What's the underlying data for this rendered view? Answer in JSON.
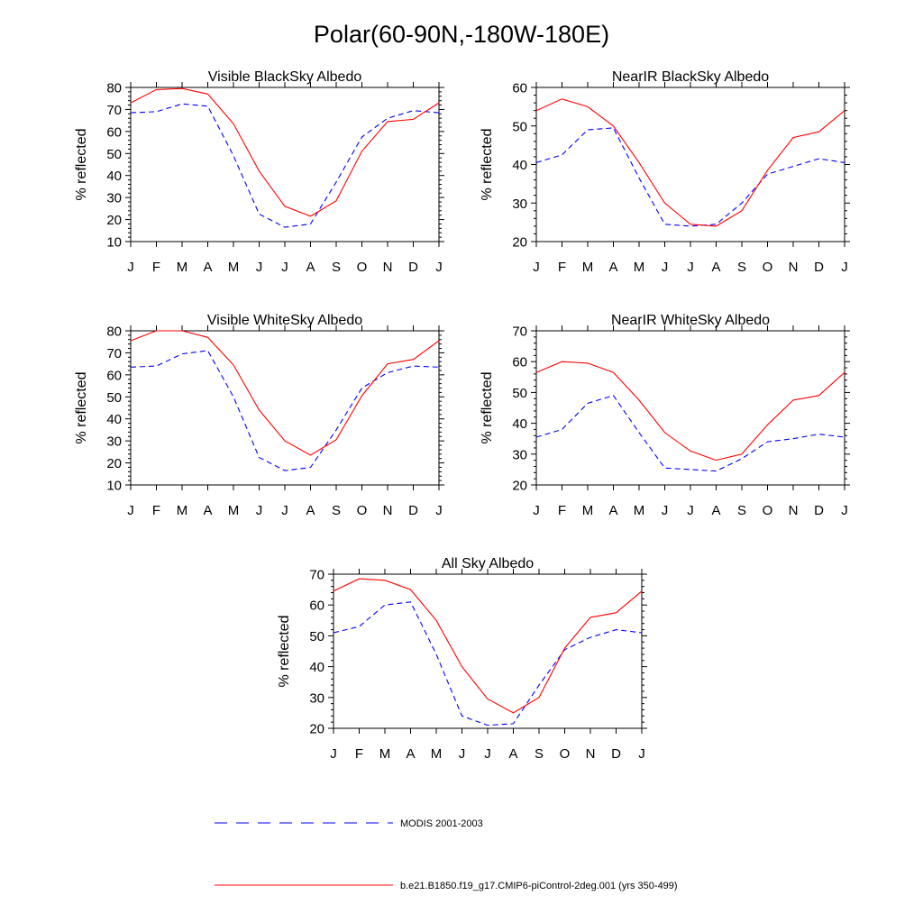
{
  "figure": {
    "title": "Polar(60-90N,-180W-180E)"
  },
  "legend": {
    "items": [
      {
        "name": "MODIS 2001-2003",
        "color": "#0000ff",
        "style": "dashed"
      },
      {
        "name": "b.e21.B1850.f19_g17.CMIP6-piControl-2deg.001 (yrs 350-499)",
        "color": "#ff0000",
        "style": "solid"
      }
    ]
  },
  "chart_data": [
    {
      "type": "line",
      "title": "Visible BlackSky Albedo",
      "xlabel": "",
      "ylabel": "% reflected",
      "categories": [
        "J",
        "F",
        "M",
        "A",
        "M",
        "J",
        "J",
        "A",
        "S",
        "O",
        "N",
        "D",
        "J"
      ],
      "ylim": [
        10,
        80
      ],
      "yticks": [
        10,
        20,
        30,
        40,
        50,
        60,
        70,
        80
      ],
      "series": [
        {
          "name": "MODIS 2001-2003",
          "color": "#0000ff",
          "style": "dashed",
          "values": [
            68.5,
            69,
            72.5,
            71.5,
            49,
            22.5,
            16.5,
            18,
            37,
            57.5,
            66,
            69.5,
            68.5
          ]
        },
        {
          "name": "b.e21.B1850.f19_g17.CMIP6-piControl-2deg.001 (yrs 350-499)",
          "color": "#ff0000",
          "style": "solid",
          "values": [
            73,
            79,
            79.5,
            77,
            63.5,
            42,
            26,
            21.5,
            28.5,
            51,
            64.5,
            65.5,
            73
          ]
        }
      ]
    },
    {
      "type": "line",
      "title": "NearIR BlackSky Albedo",
      "xlabel": "",
      "ylabel": "% reflected",
      "categories": [
        "J",
        "F",
        "M",
        "A",
        "M",
        "J",
        "J",
        "A",
        "S",
        "O",
        "N",
        "D",
        "J"
      ],
      "ylim": [
        20,
        60
      ],
      "yticks": [
        20,
        30,
        40,
        50,
        60
      ],
      "series": [
        {
          "name": "MODIS 2001-2003",
          "color": "#0000ff",
          "style": "dashed",
          "values": [
            40.5,
            42.5,
            49,
            49.5,
            36.5,
            24.5,
            24,
            24.5,
            30,
            37.5,
            39.5,
            41.5,
            40.5
          ]
        },
        {
          "name": "b.e21.B1850.f19_g17.CMIP6-piControl-2deg.001 (yrs 350-499)",
          "color": "#ff0000",
          "style": "solid",
          "values": [
            54,
            57,
            55,
            50,
            40.5,
            30,
            24.5,
            24,
            28,
            38.5,
            47,
            48.5,
            54
          ]
        }
      ]
    },
    {
      "type": "line",
      "title": "Visible WhiteSky Albedo",
      "xlabel": "",
      "ylabel": "% reflected",
      "categories": [
        "J",
        "F",
        "M",
        "A",
        "M",
        "J",
        "J",
        "A",
        "S",
        "O",
        "N",
        "D",
        "J"
      ],
      "ylim": [
        10,
        80
      ],
      "yticks": [
        10,
        20,
        30,
        40,
        50,
        60,
        70,
        80
      ],
      "series": [
        {
          "name": "MODIS 2001-2003",
          "color": "#0000ff",
          "style": "dashed",
          "values": [
            63.5,
            64,
            69.5,
            71,
            50,
            22.5,
            16.5,
            18,
            35,
            54,
            61,
            64,
            63.5
          ]
        },
        {
          "name": "b.e21.B1850.f19_g17.CMIP6-piControl-2deg.001 (yrs 350-499)",
          "color": "#ff0000",
          "style": "solid",
          "values": [
            75.5,
            80,
            80,
            77,
            64.5,
            44,
            30,
            23.5,
            30.5,
            50.5,
            65,
            67,
            75.5
          ]
        }
      ]
    },
    {
      "type": "line",
      "title": "NearIR WhiteSky Albedo",
      "xlabel": "",
      "ylabel": "% reflected",
      "categories": [
        "J",
        "F",
        "M",
        "A",
        "M",
        "J",
        "J",
        "A",
        "S",
        "O",
        "N",
        "D",
        "J"
      ],
      "ylim": [
        20,
        70
      ],
      "yticks": [
        20,
        30,
        40,
        50,
        60,
        70
      ],
      "series": [
        {
          "name": "MODIS 2001-2003",
          "color": "#0000ff",
          "style": "dashed",
          "values": [
            35.5,
            38,
            46.5,
            49,
            37,
            25.5,
            25,
            24.5,
            28.5,
            34,
            35,
            36.5,
            35.5
          ]
        },
        {
          "name": "b.e21.B1850.f19_g17.CMIP6-piControl-2deg.001 (yrs 350-499)",
          "color": "#ff0000",
          "style": "solid",
          "values": [
            56.5,
            60,
            59.5,
            56.5,
            47.5,
            37,
            31,
            28,
            30,
            39.5,
            47.5,
            49,
            56.5
          ]
        }
      ]
    },
    {
      "type": "line",
      "title": "All Sky Albedo",
      "xlabel": "",
      "ylabel": "% reflected",
      "categories": [
        "J",
        "F",
        "M",
        "A",
        "M",
        "J",
        "J",
        "A",
        "S",
        "O",
        "N",
        "D",
        "J"
      ],
      "ylim": [
        20,
        70
      ],
      "yticks": [
        20,
        30,
        40,
        50,
        60,
        70
      ],
      "series": [
        {
          "name": "MODIS 2001-2003",
          "color": "#0000ff",
          "style": "dashed",
          "values": [
            51,
            53,
            60,
            61,
            44,
            24,
            21,
            21.5,
            34,
            45.5,
            49.5,
            52,
            51
          ]
        },
        {
          "name": "b.e21.B1850.f19_g17.CMIP6-piControl-2deg.001 (yrs 350-499)",
          "color": "#ff0000",
          "style": "solid",
          "values": [
            64.5,
            68.5,
            68,
            65,
            55,
            40,
            29.5,
            25,
            30,
            46,
            56,
            57.5,
            64.5
          ]
        }
      ]
    }
  ]
}
